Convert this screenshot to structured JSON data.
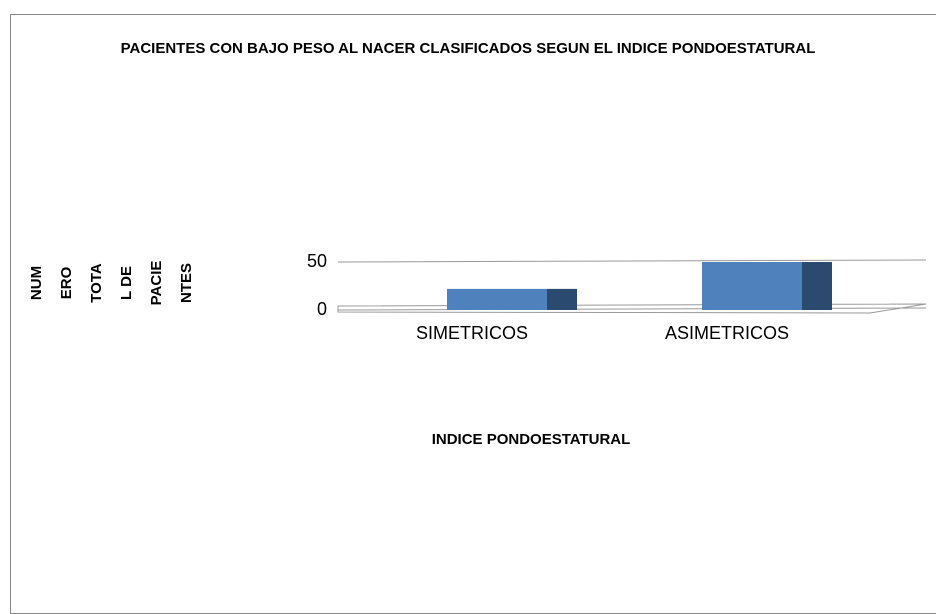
{
  "chart_data": {
    "type": "bar3d",
    "title": "PACIENTES CON BAJO PESO AL NACER CLASIFICADOS SEGUN EL INDICE PONDOESTATURAL",
    "x_label": "INDICE PONDOESTATURAL",
    "y_label_lines": [
      "NUM",
      "ERO",
      "TOTA",
      "L DE",
      "PACIE",
      "NTES"
    ],
    "categories": [
      "SIMETRICOS",
      "ASIMETRICOS"
    ],
    "values": [
      22,
      50
    ],
    "color": "#4f81bd",
    "side_color": "#2a4a70",
    "ylim": [
      0,
      50
    ],
    "yticks": [
      0,
      50
    ],
    "grid": true
  }
}
